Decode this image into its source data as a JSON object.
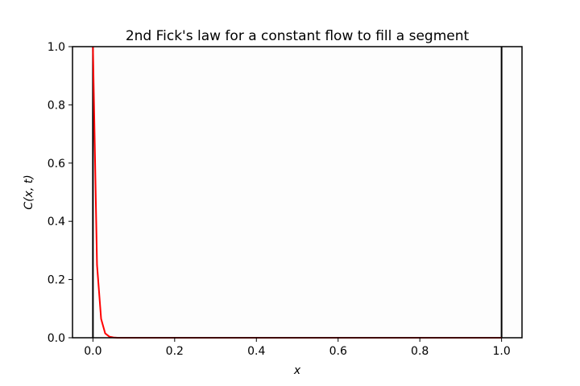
{
  "chart_data": {
    "type": "line",
    "title": "2nd Fick's law for a constant flow to fill a segment",
    "xlabel": "x",
    "ylabel": "C(x, t)",
    "xlim": [
      -0.05,
      1.05
    ],
    "ylim": [
      0,
      1.0
    ],
    "xticks": [
      0.0,
      0.2,
      0.4,
      0.6,
      0.8,
      1.0
    ],
    "xtick_labels": [
      "0.0",
      "0.2",
      "0.4",
      "0.6",
      "0.8",
      "1.0"
    ],
    "yticks": [
      0.0,
      0.2,
      0.4,
      0.6,
      0.8,
      1.0
    ],
    "ytick_labels": [
      "0.0",
      "0.2",
      "0.4",
      "0.6",
      "0.8",
      "1.0"
    ],
    "grid": false,
    "boundaries": [
      0.0,
      1.0
    ],
    "series": [
      {
        "color": "#ff0000",
        "x": [
          0.0,
          0.01,
          0.02,
          0.03,
          0.04,
          0.05,
          0.06,
          0.08,
          0.1,
          0.2,
          0.4,
          0.6,
          0.8,
          1.0
        ],
        "y": [
          1.0,
          0.25,
          0.065,
          0.015,
          0.004,
          0.001,
          0.0,
          0.0,
          0.0,
          0.0,
          0.0,
          0.0,
          0.0,
          0.0
        ]
      }
    ],
    "boundary_color": "#000000",
    "plot_background": "#fdfdfd"
  }
}
